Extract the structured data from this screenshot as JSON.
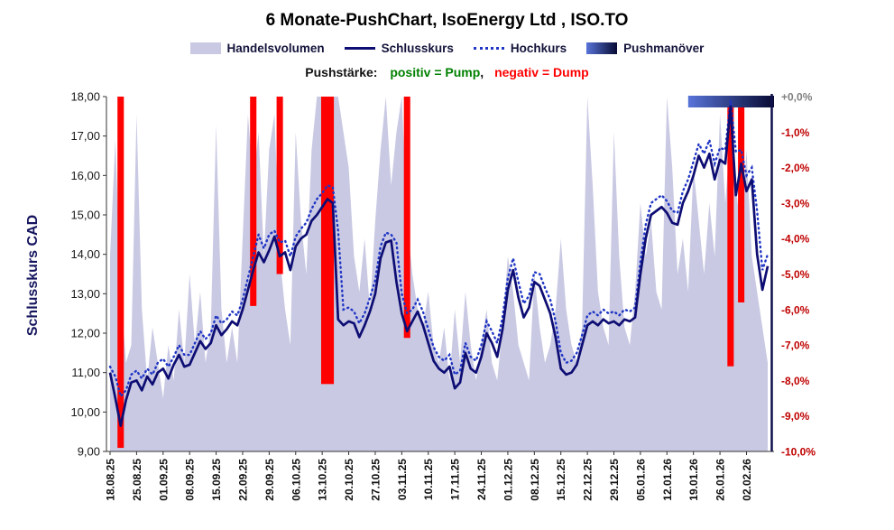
{
  "title": "6 Monate-PushChart, IsoEnergy Ltd , ISO.TO",
  "legend": {
    "volume": "Handelsvolumen",
    "close": "Schlusskurs",
    "high": "Hochkurs",
    "push": "Pushmanöver"
  },
  "push_caption": {
    "label": "Pushstärke:",
    "pump": "positiv = Pump",
    "separator": ",",
    "dump": "negativ = Dump"
  },
  "axes": {
    "y_left_title": "Schlusskurs CAD",
    "y_left_labels": [
      "18,00",
      "17,00",
      "16,00",
      "15,00",
      "14,00",
      "13,00",
      "12,00",
      "11,00",
      "10,00",
      "9,00"
    ],
    "y_right_labels": [
      "+0,0%",
      "-1,0%",
      "-2,0%",
      "-3,0%",
      "-4,0%",
      "-5,0%",
      "-6,0%",
      "-7,0%",
      "-8,0%",
      "-9,0%",
      "-10,0%"
    ]
  },
  "colors": {
    "volume_fill": "#c9c9e4",
    "close_line": "#0d0d73",
    "high_line": "#1f35c4",
    "dump_bar": "#ff0000",
    "pump_text": "#008000",
    "dump_text": "#ff0000",
    "right_axis_text": "#c00000",
    "right_axis_zero_text": "#7f7f7f",
    "axis_text": "#1a1a1a",
    "x_axis_text": "#111111",
    "axis_line": "#333333",
    "right_axis_line": "#10104d",
    "push_bar_start": "#5874d8",
    "push_bar_end": "#070b33"
  },
  "chart_data": {
    "type": "line",
    "x_tick_labels": [
      "18.08.25",
      "25.08.25",
      "01.09.25",
      "08.09.25",
      "15.09.25",
      "22.09.25",
      "29.09.25",
      "06.10.25",
      "13.10.25",
      "20.10.25",
      "27.10.25",
      "03.11.25",
      "10.11.25",
      "17.11.25",
      "24.11.25",
      "01.12.25",
      "08.12.25",
      "15.12.25",
      "22.12.25",
      "29.12.25",
      "05.01.26",
      "12.01.26",
      "19.01.26",
      "26.01.26",
      "02.02.26"
    ],
    "points_per_tick": 5,
    "ylim_left": [
      9,
      18
    ],
    "ytick_step": 1,
    "ylim_right_percent": [
      0,
      -10
    ],
    "series": [
      {
        "name": "Schlusskurs",
        "kind": "line",
        "values": [
          11.0,
          10.35,
          9.65,
          10.3,
          10.75,
          10.8,
          10.55,
          10.9,
          10.7,
          11.0,
          11.1,
          10.85,
          11.2,
          11.45,
          11.15,
          11.2,
          11.5,
          11.8,
          11.6,
          11.75,
          12.2,
          11.95,
          12.1,
          12.3,
          12.2,
          12.6,
          13.1,
          13.6,
          14.05,
          13.8,
          14.1,
          14.45,
          13.95,
          14.05,
          13.6,
          14.2,
          14.4,
          14.5,
          14.85,
          15.0,
          15.2,
          15.4,
          15.3,
          12.35,
          12.2,
          12.3,
          12.25,
          11.9,
          12.2,
          12.55,
          13.0,
          13.9,
          14.3,
          14.35,
          13.3,
          12.5,
          12.05,
          12.3,
          12.55,
          12.2,
          11.75,
          11.3,
          11.1,
          11.0,
          11.15,
          10.6,
          10.75,
          11.5,
          11.1,
          11.0,
          11.4,
          12.0,
          11.75,
          11.4,
          12.1,
          13.1,
          13.6,
          12.9,
          12.4,
          12.65,
          13.3,
          13.2,
          12.85,
          12.5,
          11.9,
          11.1,
          10.95,
          11.0,
          11.2,
          11.7,
          12.2,
          12.3,
          12.2,
          12.35,
          12.25,
          12.3,
          12.2,
          12.35,
          12.3,
          12.4,
          13.5,
          14.4,
          15.0,
          15.1,
          15.2,
          15.05,
          14.8,
          14.75,
          15.3,
          15.6,
          16.0,
          16.5,
          16.2,
          16.55,
          15.9,
          16.4,
          16.3,
          17.75,
          15.5,
          16.3,
          15.6,
          15.9,
          14.0,
          13.1,
          13.7
        ]
      },
      {
        "name": "Hochkurs",
        "kind": "dotted-line",
        "values": [
          11.15,
          10.9,
          10.4,
          10.55,
          10.95,
          11.05,
          10.85,
          11.1,
          10.95,
          11.25,
          11.35,
          11.15,
          11.4,
          11.7,
          11.45,
          11.45,
          11.75,
          12.05,
          11.85,
          12.0,
          12.45,
          12.25,
          12.35,
          12.55,
          12.45,
          12.85,
          13.4,
          13.95,
          14.5,
          14.15,
          14.5,
          14.6,
          14.3,
          14.35,
          13.95,
          14.45,
          14.65,
          14.8,
          15.15,
          15.4,
          15.55,
          15.75,
          15.7,
          14.6,
          12.6,
          12.65,
          12.55,
          12.25,
          12.5,
          12.9,
          13.35,
          14.2,
          14.55,
          14.5,
          14.3,
          13.0,
          12.5,
          12.6,
          12.85,
          12.55,
          12.1,
          11.65,
          11.4,
          11.3,
          11.45,
          10.95,
          11.05,
          11.75,
          11.4,
          11.3,
          11.7,
          12.3,
          12.05,
          11.75,
          12.4,
          13.4,
          13.9,
          13.3,
          12.75,
          12.95,
          13.55,
          13.5,
          13.15,
          12.85,
          12.3,
          11.5,
          11.25,
          11.3,
          11.5,
          11.95,
          12.45,
          12.55,
          12.45,
          12.6,
          12.5,
          12.55,
          12.45,
          12.6,
          12.55,
          12.65,
          13.8,
          14.75,
          15.3,
          15.4,
          15.5,
          15.35,
          15.1,
          15.05,
          15.6,
          15.9,
          16.35,
          16.8,
          16.55,
          16.9,
          16.3,
          16.7,
          16.65,
          17.9,
          16.6,
          16.65,
          16.0,
          16.2,
          15.1,
          13.6,
          14.0
        ]
      },
      {
        "name": "Handelsvolumen",
        "kind": "area",
        "scale": "relative",
        "values": [
          0.55,
          0.88,
          0.45,
          0.25,
          0.3,
          0.95,
          0.4,
          0.2,
          0.35,
          0.25,
          0.15,
          0.3,
          0.2,
          0.4,
          0.25,
          0.5,
          0.3,
          0.45,
          0.25,
          0.35,
          0.92,
          0.4,
          0.25,
          0.35,
          0.25,
          0.6,
          0.95,
          0.75,
          0.9,
          0.55,
          0.85,
          0.95,
          0.55,
          0.4,
          0.3,
          0.9,
          0.65,
          0.5,
          0.85,
          1.0,
          1.0,
          0.85,
          1.0,
          1.0,
          0.9,
          0.8,
          0.55,
          0.45,
          0.6,
          0.4,
          0.65,
          0.85,
          1.0,
          0.75,
          0.9,
          1.0,
          0.65,
          0.5,
          0.4,
          0.35,
          0.45,
          0.3,
          0.25,
          0.35,
          0.2,
          0.4,
          0.25,
          0.45,
          0.3,
          0.2,
          0.3,
          0.4,
          0.25,
          0.2,
          0.35,
          0.55,
          0.45,
          0.3,
          0.25,
          0.2,
          0.5,
          0.35,
          0.25,
          0.3,
          0.4,
          0.6,
          0.4,
          0.3,
          0.25,
          0.35,
          1.0,
          0.75,
          0.45,
          0.35,
          0.3,
          0.9,
          0.55,
          0.35,
          0.3,
          0.45,
          0.7,
          0.55,
          0.65,
          0.45,
          0.4,
          1.0,
          0.8,
          0.5,
          0.6,
          0.45,
          0.8,
          0.65,
          0.5,
          0.7,
          0.55,
          0.95,
          0.7,
          0.9,
          0.75,
          0.6,
          0.85,
          0.55,
          0.45,
          0.35,
          0.25
        ]
      }
    ],
    "push_events": [
      {
        "date": "20.08.25",
        "index": 2,
        "percent": -9.9,
        "width_days": 1.2
      },
      {
        "date": "24.09.25",
        "index": 27,
        "percent": -5.9,
        "width_days": 1.2
      },
      {
        "date": "01.10.25",
        "index": 32,
        "percent": -5.0,
        "width_days": 1.2
      },
      {
        "date": "14.10.25",
        "index": 41,
        "percent": -8.1,
        "width_days": 2.4
      },
      {
        "date": "04.11.25",
        "index": 56,
        "percent": -6.8,
        "width_days": 1.2
      },
      {
        "date": "28.01.26",
        "index": 117,
        "percent": -7.6,
        "width_days": 1.2
      },
      {
        "date": "30.01.26",
        "index": 119,
        "percent": -5.8,
        "width_days": 1.2
      }
    ],
    "push_maneuver": {
      "start_index": 109,
      "end_index": 124,
      "position": "top"
    }
  }
}
